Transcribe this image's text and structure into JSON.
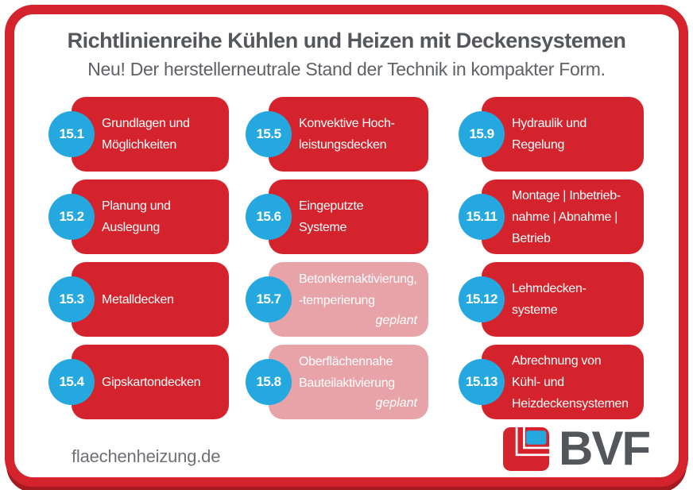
{
  "header": {
    "title": "Richtlinienreihe Kühlen und Heizen mit Deckensystemen",
    "subtitle": "Neu! Der herstellerneutrale Stand der Technik in kompakter Form."
  },
  "planned_label": "geplant",
  "columns": [
    {
      "cards": [
        {
          "number": "15.1",
          "lines": [
            "Grundlagen und",
            "Möglichkeiten"
          ],
          "planned": false
        },
        {
          "number": "15.2",
          "lines": [
            "Planung und",
            "Auslegung"
          ],
          "planned": false
        },
        {
          "number": "15.3",
          "lines": [
            "Metalldecken"
          ],
          "planned": false
        },
        {
          "number": "15.4",
          "lines": [
            "Gipskartondecken"
          ],
          "planned": false
        }
      ]
    },
    {
      "cards": [
        {
          "number": "15.5",
          "lines": [
            "Konvektive Hoch-",
            "leistungsdecken"
          ],
          "planned": false
        },
        {
          "number": "15.6",
          "lines": [
            "Eingeputzte",
            "Systeme"
          ],
          "planned": false
        },
        {
          "number": "15.7",
          "lines": [
            "Betonkernaktivierung,",
            "-temperierung"
          ],
          "planned": true
        },
        {
          "number": "15.8",
          "lines": [
            "Oberflächennahe",
            "Bauteilaktivierung"
          ],
          "planned": true
        }
      ]
    },
    {
      "cards": [
        {
          "number": "15.9",
          "lines": [
            "Hydraulik und",
            "Regelung"
          ],
          "planned": false
        },
        {
          "number": "15.11",
          "lines": [
            "Montage | Inbetrieb-",
            "nahme | Abnahme |",
            "Betrieb"
          ],
          "planned": false
        },
        {
          "number": "15.12",
          "lines": [
            "Lehmdecken-",
            "systeme"
          ],
          "planned": false
        },
        {
          "number": "15.13",
          "lines": [
            "Abrechnung von",
            "Kühl- und",
            "Heizdeckensystemen"
          ],
          "planned": false
        }
      ]
    }
  ],
  "footer": {
    "website": "flaechenheizung.de",
    "logo_text": "BVF"
  },
  "colors": {
    "red": "#d4232c",
    "dark_red": "#a31b20",
    "pink": "#e8a3a9",
    "blue": "#25a8e0",
    "title_gray": "#54575b",
    "text_gray": "#5d6165",
    "footer_gray": "#6d7176",
    "logo_gray": "#53565a"
  }
}
